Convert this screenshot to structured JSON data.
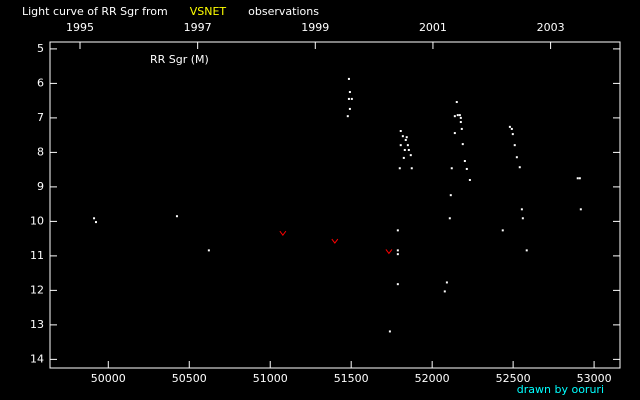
{
  "chart_data": {
    "type": "scatter",
    "title_parts": [
      "Light curve of RR Sgr from",
      "VSNET",
      "observations"
    ],
    "title_colors": [
      "#ffffff",
      "#ffff00",
      "#ffffff"
    ],
    "annotation": "RR Sgr (M)",
    "footer": "drawn by ooruri",
    "footer_color": "#00ffff",
    "xlim": [
      49640,
      53160
    ],
    "xticks": [
      50000,
      50500,
      51000,
      51500,
      52000,
      52500,
      53000
    ],
    "x2lim": [
      1994.49,
      2004.18
    ],
    "x2ticks": [
      1995,
      1997,
      1999,
      2001,
      2003
    ],
    "ylim": [
      14.25,
      4.8
    ],
    "yticks": [
      5,
      6,
      7,
      8,
      9,
      10,
      11,
      12,
      13,
      14
    ],
    "series": [
      {
        "color": "#ffffff",
        "marker": "dot",
        "x": [
          49912,
          49924,
          50424,
          50621,
          51739,
          51788,
          51788,
          51788,
          51788,
          51800,
          51806,
          51819,
          51806,
          51825,
          51831,
          51837,
          51843,
          51850,
          51856,
          51868,
          51874,
          51486,
          51492,
          51486,
          51504,
          51492,
          51479,
          52091,
          52078,
          52109,
          52115,
          52121,
          52140,
          52152,
          52140,
          52158,
          52171,
          52177,
          52177,
          52183,
          52189,
          52202,
          52214,
          52233,
          52436,
          52480,
          52492,
          52498,
          52510,
          52523,
          52541,
          52554,
          52560,
          52584,
          52899,
          52912,
          52918
        ],
        "values": [
          9.91,
          10.02,
          9.85,
          10.84,
          13.19,
          10.26,
          10.84,
          10.95,
          11.82,
          8.46,
          7.38,
          7.53,
          7.79,
          8.16,
          7.93,
          7.64,
          7.56,
          7.79,
          7.93,
          8.08,
          8.46,
          5.87,
          6.25,
          6.45,
          6.45,
          6.74,
          6.95,
          11.77,
          12.03,
          9.91,
          9.24,
          8.46,
          7.44,
          6.54,
          6.95,
          6.92,
          6.92,
          7.0,
          7.12,
          7.32,
          7.76,
          8.25,
          8.48,
          8.8,
          10.26,
          7.26,
          7.32,
          7.47,
          7.79,
          8.14,
          8.43,
          9.65,
          9.91,
          10.84,
          8.75,
          8.75,
          9.65
        ]
      },
      {
        "color": "#ff0000",
        "marker": "v",
        "x": [
          51078,
          51399,
          51733
        ],
        "values": [
          10.34,
          10.57,
          10.87
        ]
      }
    ]
  }
}
